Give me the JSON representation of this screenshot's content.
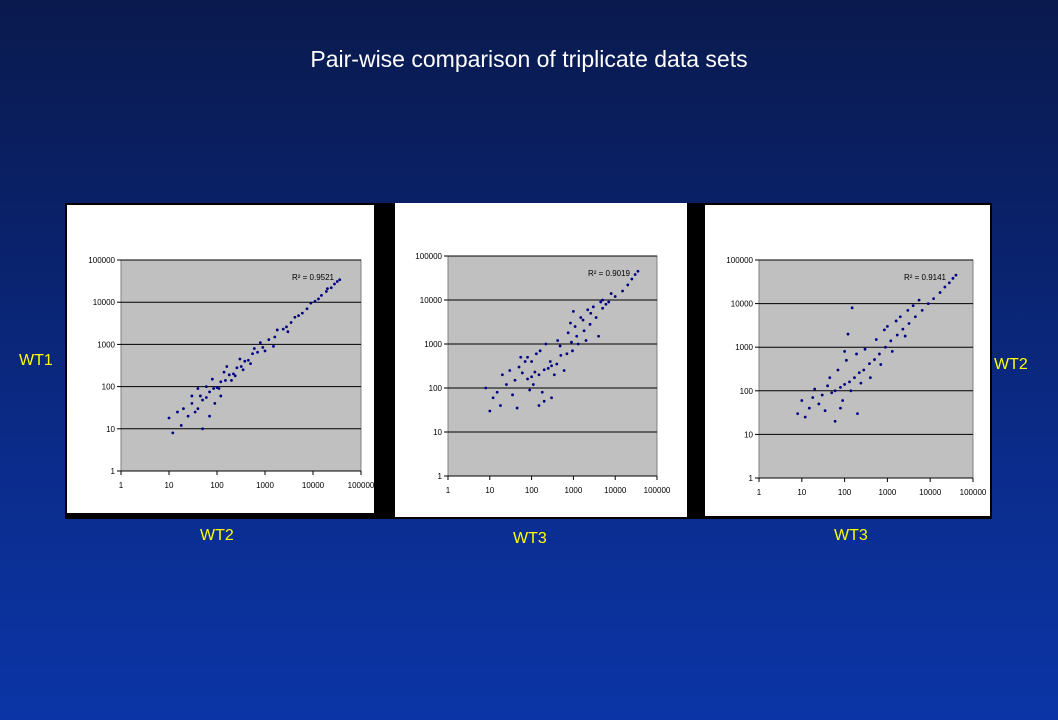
{
  "slide": {
    "title": "Pair-wise comparison of triplicate data sets",
    "title_color": "#ffffff",
    "label_color": "#ffff00",
    "labels": {
      "left_y": "WT1",
      "right_y": "WT2",
      "x1": "WT2",
      "x2": "WT3",
      "x3": "WT3"
    }
  },
  "chart_data": [
    {
      "type": "scatter",
      "x_scale": "log",
      "y_scale": "log",
      "xlim": [
        1,
        100000
      ],
      "ylim": [
        1,
        100000
      ],
      "x_ticks": [
        "1",
        "10",
        "100",
        "1000",
        "10000",
        "100000"
      ],
      "y_ticks": [
        "1",
        "10",
        "100",
        "1000",
        "10000",
        "100000"
      ],
      "grid": "horizontal",
      "plot_bg": "#c0c0c0",
      "marker_color": "#000080",
      "annotation": "R² = 0.9521",
      "trend": "tight diagonal, strong correlation",
      "points": [
        [
          1600,
          1500
        ],
        [
          2400,
          2300
        ],
        [
          3500,
          3300
        ],
        [
          5000,
          4800
        ],
        [
          7500,
          7000
        ],
        [
          11000,
          10500
        ],
        [
          15000,
          14500
        ],
        [
          19000,
          18000
        ],
        [
          24000,
          22000
        ],
        [
          28000,
          27000
        ],
        [
          32000,
          31000
        ],
        [
          36000,
          34000
        ],
        [
          20000,
          21000
        ],
        [
          13000,
          12000
        ],
        [
          9000,
          9500
        ],
        [
          6000,
          5500
        ],
        [
          4200,
          4400
        ],
        [
          2800,
          2600
        ],
        [
          1200,
          1300
        ],
        [
          900,
          850
        ],
        [
          700,
          650
        ],
        [
          550,
          600
        ],
        [
          450,
          420
        ],
        [
          380,
          400
        ],
        [
          320,
          300
        ],
        [
          260,
          280
        ],
        [
          220,
          200
        ],
        [
          180,
          190
        ],
        [
          150,
          140
        ],
        [
          120,
          130
        ],
        [
          100,
          95
        ],
        [
          85,
          90
        ],
        [
          70,
          75
        ],
        [
          60,
          55
        ],
        [
          50,
          48
        ],
        [
          45,
          60
        ],
        [
          40,
          30
        ],
        [
          35,
          25
        ],
        [
          30,
          40
        ],
        [
          25,
          20
        ],
        [
          20,
          30
        ],
        [
          18,
          12
        ],
        [
          15,
          25
        ],
        [
          12,
          8
        ],
        [
          10,
          18
        ],
        [
          60,
          100
        ],
        [
          80,
          150
        ],
        [
          110,
          90
        ],
        [
          140,
          220
        ],
        [
          200,
          140
        ],
        [
          300,
          450
        ],
        [
          500,
          350
        ],
        [
          800,
          1100
        ],
        [
          1500,
          900
        ],
        [
          50,
          10
        ],
        [
          70,
          20
        ],
        [
          90,
          40
        ],
        [
          40,
          90
        ],
        [
          30,
          60
        ],
        [
          120,
          60
        ],
        [
          160,
          300
        ],
        [
          240,
          180
        ],
        [
          350,
          250
        ],
        [
          600,
          800
        ],
        [
          1000,
          700
        ],
        [
          1800,
          2200
        ],
        [
          3000,
          2000
        ]
      ]
    },
    {
      "type": "scatter",
      "x_scale": "log",
      "y_scale": "log",
      "xlim": [
        1,
        100000
      ],
      "ylim": [
        1,
        100000
      ],
      "x_ticks": [
        "1",
        "10",
        "100",
        "1000",
        "10000",
        "100000"
      ],
      "y_ticks": [
        "1",
        "10",
        "100",
        "1000",
        "10000",
        "100000"
      ],
      "grid": "horizontal",
      "plot_bg": "#c0c0c0",
      "marker_color": "#000080",
      "annotation": "R² = 0.9019",
      "trend": "broad cloud, weaker correlation",
      "points": [
        [
          15000,
          16000
        ],
        [
          20000,
          22000
        ],
        [
          25000,
          30000
        ],
        [
          30000,
          38000
        ],
        [
          35000,
          45000
        ],
        [
          10000,
          12000
        ],
        [
          7000,
          9000
        ],
        [
          5000,
          6500
        ],
        [
          3500,
          4000
        ],
        [
          2500,
          2800
        ],
        [
          1800,
          2000
        ],
        [
          1200,
          1500
        ],
        [
          900,
          1100
        ],
        [
          700,
          600
        ],
        [
          500,
          550
        ],
        [
          400,
          350
        ],
        [
          300,
          320
        ],
        [
          250,
          280
        ],
        [
          200,
          260
        ],
        [
          150,
          200
        ],
        [
          120,
          230
        ],
        [
          100,
          180
        ],
        [
          80,
          160
        ],
        [
          60,
          220
        ],
        [
          50,
          300
        ],
        [
          40,
          150
        ],
        [
          30,
          250
        ],
        [
          25,
          120
        ],
        [
          20,
          200
        ],
        [
          15,
          80
        ],
        [
          10,
          30
        ],
        [
          8,
          100
        ],
        [
          12,
          60
        ],
        [
          18,
          40
        ],
        [
          35,
          70
        ],
        [
          45,
          35
        ],
        [
          55,
          500
        ],
        [
          70,
          400
        ],
        [
          90,
          90
        ],
        [
          110,
          120
        ],
        [
          130,
          600
        ],
        [
          160,
          700
        ],
        [
          180,
          80
        ],
        [
          220,
          1000
        ],
        [
          280,
          400
        ],
        [
          350,
          200
        ],
        [
          420,
          1200
        ],
        [
          480,
          900
        ],
        [
          600,
          250
        ],
        [
          750,
          1800
        ],
        [
          850,
          3000
        ],
        [
          950,
          700
        ],
        [
          1100,
          2500
        ],
        [
          1300,
          1000
        ],
        [
          1500,
          4000
        ],
        [
          1700,
          3500
        ],
        [
          2000,
          1200
        ],
        [
          2200,
          6000
        ],
        [
          2600,
          5000
        ],
        [
          3000,
          7000
        ],
        [
          4000,
          1500
        ],
        [
          4500,
          9000
        ],
        [
          6000,
          8000
        ],
        [
          8000,
          14000
        ],
        [
          1000,
          5500
        ],
        [
          5000,
          10000
        ],
        [
          200,
          50
        ],
        [
          300,
          60
        ],
        [
          150,
          40
        ],
        [
          100,
          400
        ],
        [
          80,
          500
        ]
      ]
    },
    {
      "type": "scatter",
      "x_scale": "log",
      "y_scale": "log",
      "xlim": [
        1,
        100000
      ],
      "ylim": [
        1,
        100000
      ],
      "x_ticks": [
        "1",
        "10",
        "100",
        "1000",
        "10000",
        "100000"
      ],
      "y_ticks": [
        "1",
        "10",
        "100",
        "1000",
        "10000",
        "100000"
      ],
      "grid": "horizontal",
      "plot_bg": "#c0c0c0",
      "marker_color": "#000080",
      "annotation": "R² = 0.9141",
      "trend": "moderate spread, good correlation",
      "points": [
        [
          12000,
          13000
        ],
        [
          17000,
          18000
        ],
        [
          22000,
          24000
        ],
        [
          28000,
          30000
        ],
        [
          34000,
          38000
        ],
        [
          40000,
          45000
        ],
        [
          9000,
          10000
        ],
        [
          6500,
          7000
        ],
        [
          4500,
          5000
        ],
        [
          3200,
          3500
        ],
        [
          2300,
          2600
        ],
        [
          1700,
          1900
        ],
        [
          1200,
          1400
        ],
        [
          900,
          1000
        ],
        [
          650,
          700
        ],
        [
          500,
          520
        ],
        [
          380,
          420
        ],
        [
          280,
          300
        ],
        [
          220,
          260
        ],
        [
          170,
          200
        ],
        [
          130,
          160
        ],
        [
          100,
          140
        ],
        [
          80,
          120
        ],
        [
          60,
          100
        ],
        [
          50,
          90
        ],
        [
          40,
          130
        ],
        [
          30,
          80
        ],
        [
          25,
          50
        ],
        [
          20,
          110
        ],
        [
          15,
          40
        ],
        [
          10,
          60
        ],
        [
          8,
          30
        ],
        [
          12,
          25
        ],
        [
          18,
          70
        ],
        [
          35,
          35
        ],
        [
          45,
          200
        ],
        [
          70,
          300
        ],
        [
          90,
          60
        ],
        [
          110,
          500
        ],
        [
          140,
          100
        ],
        [
          190,
          700
        ],
        [
          240,
          150
        ],
        [
          300,
          900
        ],
        [
          400,
          200
        ],
        [
          550,
          1500
        ],
        [
          700,
          400
        ],
        [
          850,
          2500
        ],
        [
          1000,
          3000
        ],
        [
          1300,
          800
        ],
        [
          1600,
          4000
        ],
        [
          2000,
          5000
        ],
        [
          2600,
          1800
        ],
        [
          3000,
          7000
        ],
        [
          4000,
          9000
        ],
        [
          5500,
          12000
        ],
        [
          150,
          8000
        ],
        [
          120,
          2000
        ],
        [
          60,
          20
        ],
        [
          80,
          40
        ],
        [
          200,
          30
        ],
        [
          100,
          800
        ]
      ]
    }
  ]
}
